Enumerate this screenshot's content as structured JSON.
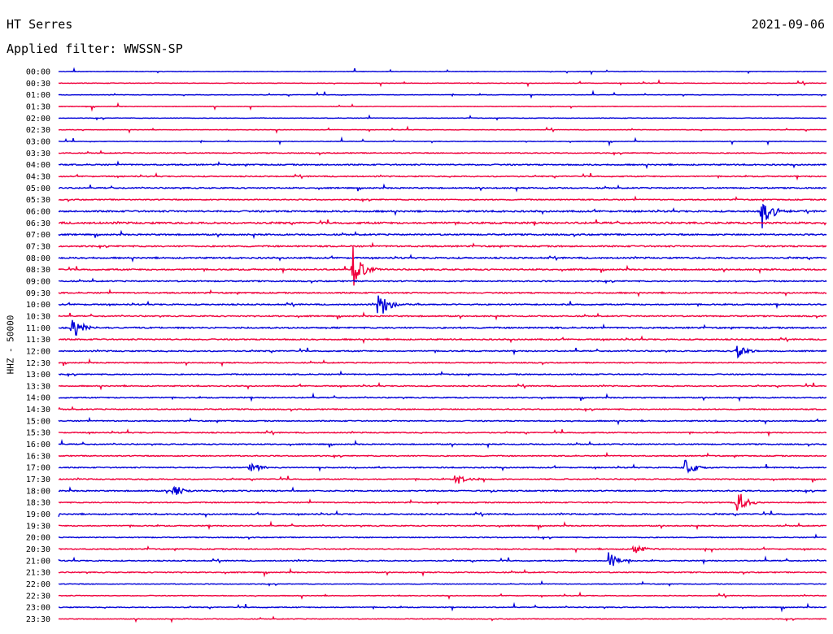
{
  "header": {
    "station": "HT Serres",
    "date": "2021-09-06",
    "filter": "Applied filter: WWSSN-SP"
  },
  "chart_data": {
    "type": "line",
    "title": "HT Serres",
    "subtitle": "Applied filter: WWSSN-SP",
    "ylabel": "HHZ - 50000",
    "xlabel": "",
    "grid": false,
    "legend": "none",
    "categories": [
      "00:00",
      "00:30",
      "01:00",
      "01:30",
      "02:00",
      "02:30",
      "03:00",
      "03:30",
      "04:00",
      "04:30",
      "05:00",
      "05:30",
      "06:00",
      "06:30",
      "07:00",
      "07:30",
      "08:00",
      "08:30",
      "09:00",
      "09:30",
      "10:00",
      "10:30",
      "11:00",
      "11:30",
      "12:00",
      "12:30",
      "13:00",
      "13:30",
      "14:00",
      "14:30",
      "15:00",
      "15:30",
      "16:00",
      "16:30",
      "17:00",
      "17:30",
      "18:00",
      "18:30",
      "19:00",
      "19:30",
      "20:00",
      "20:30",
      "21:00",
      "21:30",
      "22:00",
      "22:30",
      "23:00",
      "23:30"
    ],
    "line_colors": [
      "#0000d8",
      "#f0003c"
    ],
    "noise_level": [
      0.3,
      0.3,
      0.3,
      0.3,
      0.3,
      0.3,
      0.35,
      0.5,
      0.7,
      0.6,
      0.7,
      0.6,
      0.9,
      1.0,
      0.8,
      0.8,
      0.8,
      0.8,
      0.7,
      0.7,
      0.7,
      0.7,
      0.8,
      0.7,
      0.7,
      0.6,
      0.6,
      0.6,
      0.6,
      0.6,
      0.6,
      0.6,
      0.6,
      0.6,
      0.6,
      0.6,
      0.7,
      0.6,
      0.7,
      0.6,
      0.5,
      0.6,
      0.6,
      0.6,
      0.4,
      0.4,
      0.5,
      0.4
    ],
    "events": [
      {
        "time": "06:00",
        "minute": 27.5,
        "amplitude": 28
      },
      {
        "time": "08:30",
        "minute": 11.5,
        "amplitude": 30
      },
      {
        "time": "10:00",
        "minute": 12.5,
        "amplitude": 24
      },
      {
        "time": "11:00",
        "minute": 0.5,
        "amplitude": 20
      },
      {
        "time": "17:00",
        "minute": 24.5,
        "amplitude": 14
      },
      {
        "time": "18:30",
        "minute": 26.5,
        "amplitude": 20
      },
      {
        "time": "21:00",
        "minute": 21.5,
        "amplitude": 14
      },
      {
        "time": "12:00",
        "minute": 26.5,
        "amplitude": 9
      },
      {
        "time": "17:30",
        "minute": 15.5,
        "amplitude": 9
      },
      {
        "time": "18:00",
        "minute": 4.5,
        "amplitude": 10
      },
      {
        "time": "17:00",
        "minute": 7.5,
        "amplitude": 9
      },
      {
        "time": "20:30",
        "minute": 22.5,
        "amplitude": 8
      }
    ]
  }
}
